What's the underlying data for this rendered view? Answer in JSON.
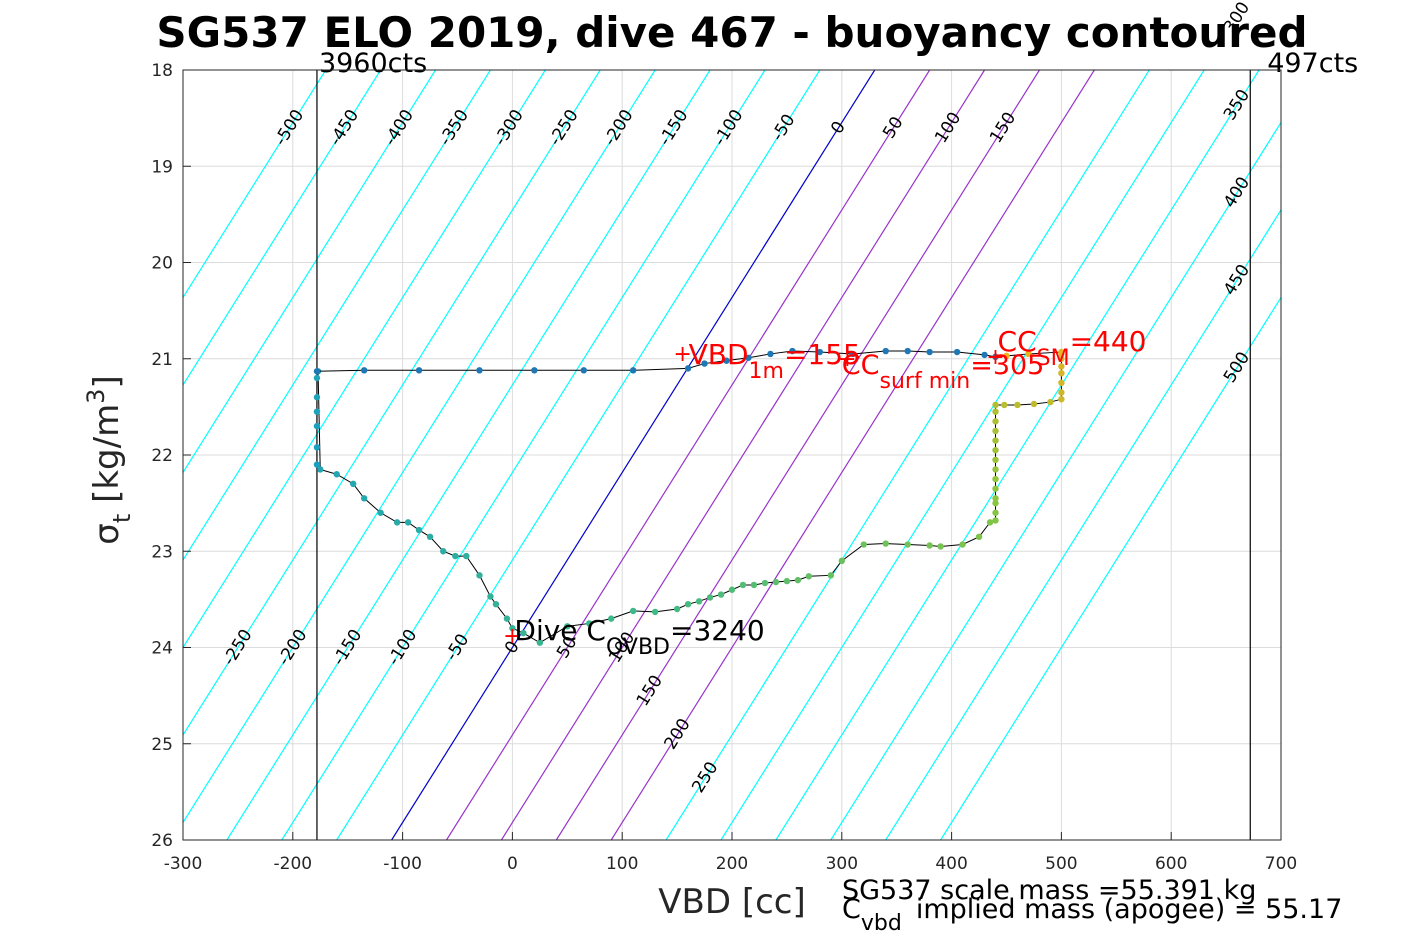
{
  "chart_data": {
    "type": "line",
    "title": "SG537 ELO 2019, dive 467 - buoyancy contoured",
    "xlabel": "VBD [cc]",
    "ylabel": "σ t [kg/m 3 ]",
    "xlim": [
      -300,
      700
    ],
    "ylim": [
      18,
      26
    ],
    "y_reversed": true,
    "grid": true,
    "x_ticks": [
      "-300",
      "-200",
      "-100",
      "0",
      "100",
      "200",
      "300",
      "400",
      "500",
      "600",
      "700"
    ],
    "y_ticks": [
      "18",
      "19",
      "20",
      "21",
      "22",
      "23",
      "24",
      "25",
      "26"
    ],
    "vertical_lines": [
      {
        "label": "3960cts",
        "x": -178
      },
      {
        "label": "497cts",
        "x": 672
      }
    ],
    "contours": {
      "slope_vbd_per_sigma": -55,
      "ref_sigma": 24,
      "values": [
        -500,
        -450,
        -400,
        -350,
        -300,
        -250,
        -200,
        -150,
        -100,
        -50,
        0,
        50,
        100,
        150,
        200,
        250,
        300,
        350,
        400,
        450,
        500
      ],
      "colors": {
        "negative": "#00ffff",
        "zero": "#0000cc",
        "positive_low": "#9933cc",
        "positive_high": "#00ffff"
      },
      "upper_labels": [
        "-500",
        "-450",
        "-400",
        "-350",
        "-300",
        "-250",
        "-200",
        "-150",
        "-100",
        "-50",
        "0",
        "50",
        "100",
        "150",
        "200",
        "300",
        "350",
        "400",
        "450",
        "500"
      ],
      "lower_labels": [
        "-500",
        "-450",
        "-400",
        "-350",
        "-300",
        "-250",
        "-200",
        "-150",
        "-100",
        "-50",
        "0",
        "50",
        "100",
        "150",
        "200",
        "250"
      ]
    },
    "series": [
      {
        "x": [
          -178,
          -178,
          -178,
          -178,
          -178,
          -178,
          -177,
          -175,
          -160,
          -145,
          -135,
          -120,
          -105,
          -95,
          -85,
          -75,
          -63,
          -52,
          -42,
          -30,
          -20,
          -15,
          -5,
          0,
          10,
          25,
          50,
          70,
          90,
          110,
          130,
          150,
          160,
          170,
          180,
          190,
          200,
          210,
          220,
          230,
          240,
          250,
          260,
          270,
          290,
          300,
          320,
          340,
          360,
          380,
          390,
          410,
          425,
          435,
          440,
          440,
          440,
          440,
          440,
          440,
          440,
          440,
          440,
          440,
          440,
          440,
          440,
          440,
          448,
          460,
          475,
          490,
          500,
          500,
          500,
          500,
          500,
          500,
          500,
          500,
          470,
          450,
          440
        ],
        "y": [
          22.1,
          21.92,
          21.7,
          21.55,
          21.4,
          21.2,
          21.13,
          22.15,
          22.2,
          22.3,
          22.45,
          22.6,
          22.7,
          22.7,
          22.78,
          22.85,
          23.0,
          23.05,
          23.05,
          23.25,
          23.47,
          23.55,
          23.7,
          23.8,
          23.85,
          23.95,
          23.78,
          23.75,
          23.7,
          23.62,
          23.63,
          23.6,
          23.55,
          23.52,
          23.48,
          23.45,
          23.4,
          23.35,
          23.35,
          23.33,
          23.32,
          23.31,
          23.3,
          23.26,
          23.25,
          23.1,
          22.93,
          22.92,
          22.93,
          22.94,
          22.95,
          22.93,
          22.85,
          22.7,
          22.68,
          22.6,
          22.5,
          22.45,
          22.35,
          22.25,
          22.15,
          22.05,
          21.95,
          21.85,
          21.75,
          21.65,
          21.55,
          21.48,
          21.48,
          21.48,
          21.47,
          21.45,
          21.42,
          21.35,
          21.25,
          21.15,
          21.08,
          21.0,
          20.95,
          20.93,
          20.95,
          20.97,
          20.98
        ],
        "color_note": "gradient green to orange along ascent"
      },
      {
        "x": [
          440,
          430,
          405,
          380,
          360,
          340,
          310,
          280,
          255,
          235,
          215,
          195,
          175,
          160,
          110,
          65,
          20,
          -30,
          -85,
          -135,
          -178
        ],
        "y": [
          20.98,
          20.96,
          20.93,
          20.93,
          20.92,
          20.92,
          20.95,
          20.93,
          20.92,
          20.95,
          20.99,
          21.02,
          21.05,
          21.1,
          21.12,
          21.12,
          21.12,
          21.12,
          21.12,
          21.12,
          21.13
        ],
        "color": "#1f77b4"
      }
    ],
    "markers": [
      {
        "label": "VBD",
        "sub": "1m",
        "suffix": "=155",
        "x": 155,
        "y": 20.95
      },
      {
        "label": "CC",
        "sub": "SM",
        "suffix": "=440",
        "x": 440,
        "y": 20.98
      },
      {
        "label": "CC",
        "sub": "surf min",
        "suffix": "=305",
        "x": 305,
        "y": 21.0
      },
      {
        "label": "Dive C",
        "sub": "OVBD",
        "suffix": "=3240",
        "x": 0,
        "y": 23.88
      }
    ]
  },
  "footer": {
    "line1": "SG537 scale mass =55.391 kg",
    "line2_main": "C",
    "line2_sub": "vbd",
    "line2_rest": "implied mass (apogee) = 55.17"
  }
}
